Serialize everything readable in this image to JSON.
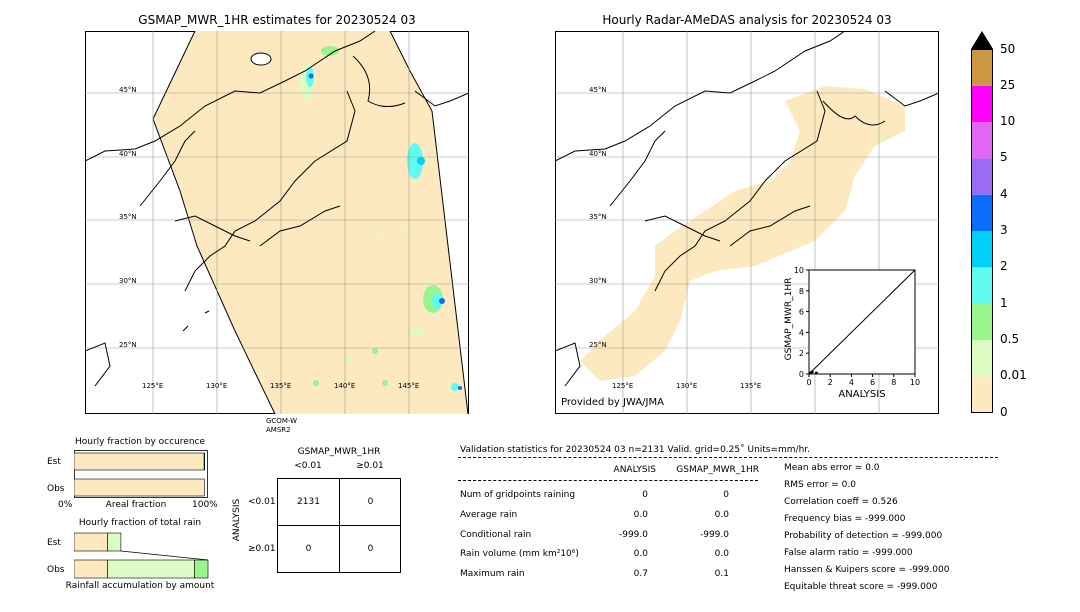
{
  "left_map": {
    "title": "GSMAP_MWR_1HR estimates for 20230524 03",
    "lat_labels": [
      "45°N",
      "40°N",
      "35°N",
      "30°N",
      "25°N"
    ],
    "lon_labels": [
      "125°E",
      "130°E",
      "135°E",
      "140°E",
      "145°E"
    ],
    "satellite": "GCOM-W",
    "sensor": "AMSR2"
  },
  "right_map": {
    "title": "Hourly Radar-AMeDAS analysis for 20230524 03",
    "lat_labels": [
      "45°N",
      "40°N",
      "35°N",
      "30°N",
      "25°N"
    ],
    "lon_labels": [
      "125°E",
      "130°E",
      "135°E"
    ],
    "credit": "Provided by JWA/JMA"
  },
  "colorbar": {
    "levels": [
      "0",
      "0.01",
      "0.5",
      "1",
      "2",
      "3",
      "4",
      "5",
      "10",
      "25",
      "50"
    ],
    "colors": [
      "#fde9c0",
      "#dcfcc4",
      "#98f58c",
      "#5ffbf0",
      "#00d0f7",
      "#0a6cf8",
      "#9a6cf5",
      "#e266f4",
      "#ff00f8",
      "#cc9740"
    ],
    "over_color": "#000000"
  },
  "chart_data": [
    {
      "type": "line",
      "title": "",
      "xlabel": "ANALYSIS",
      "ylabel": "GSMAP_MWR_1HR",
      "xlim": [
        0,
        10
      ],
      "ylim": [
        0,
        10
      ],
      "xticks": [
        "0",
        "2",
        "4",
        "6",
        "8",
        "10"
      ],
      "yticks": [
        "0",
        "2",
        "4",
        "6",
        "8",
        "10"
      ],
      "series": [
        {
          "x": [
            0,
            10
          ],
          "y": [
            0,
            10
          ]
        }
      ],
      "scatter": [
        [
          0.1,
          0.1
        ],
        [
          0.3,
          0.2
        ],
        [
          0.7,
          0.1
        ]
      ]
    },
    {
      "type": "bar",
      "title": "Hourly fraction by occurence",
      "xlabel": "Areal fraction",
      "categories": [
        "Est",
        "Obs"
      ],
      "x_ticks": [
        "0%",
        "100%"
      ],
      "values": [
        0.98,
        0.98
      ]
    },
    {
      "type": "bar",
      "title": "Hourly fraction of total rain",
      "xlabel": "Rainfall accumulation by amount",
      "categories": [
        "Est",
        "Obs"
      ],
      "est_segments": [
        0.25,
        0.1
      ],
      "obs_segments": [
        0.25,
        0.65,
        0.1
      ]
    },
    {
      "type": "table",
      "title": "GSMAP_MWR_1HR",
      "col_headers": [
        "<0.01",
        "≥0.01"
      ],
      "row_axis_label": "ANALYSIS",
      "row_headers": [
        "<0.01",
        "≥0.01"
      ],
      "cells": [
        [
          "2131",
          "0"
        ],
        [
          "0",
          "0"
        ]
      ]
    }
  ],
  "validation": {
    "header": "Validation statistics for 20230524 03  n=2131 Valid. grid=0.25˚ Units=mm/hr.",
    "col_analysis": "ANALYSIS",
    "col_gsmap": "GSMAP_MWR_1HR",
    "rows": [
      {
        "label": "Num of gridpoints raining",
        "a": "0",
        "g": "0"
      },
      {
        "label": "Average rain",
        "a": "0.0",
        "g": "0.0"
      },
      {
        "label": "Conditional rain",
        "a": "-999.0",
        "g": "-999.0"
      },
      {
        "label": "Rain volume (mm km²10⁶)",
        "a": "0.0",
        "g": "0.0"
      },
      {
        "label": "Maximum rain",
        "a": "0.7",
        "g": "0.1"
      }
    ],
    "scores": [
      "Mean abs error =    0.0",
      "RMS error =    0.0",
      "Correlation coeff =  0.526",
      "Frequency bias = -999.000",
      "Probability of detection = -999.000",
      "False alarm ratio = -999.000",
      "Hanssen & Kuipers score = -999.000",
      "Equitable threat score = -999.000"
    ]
  }
}
